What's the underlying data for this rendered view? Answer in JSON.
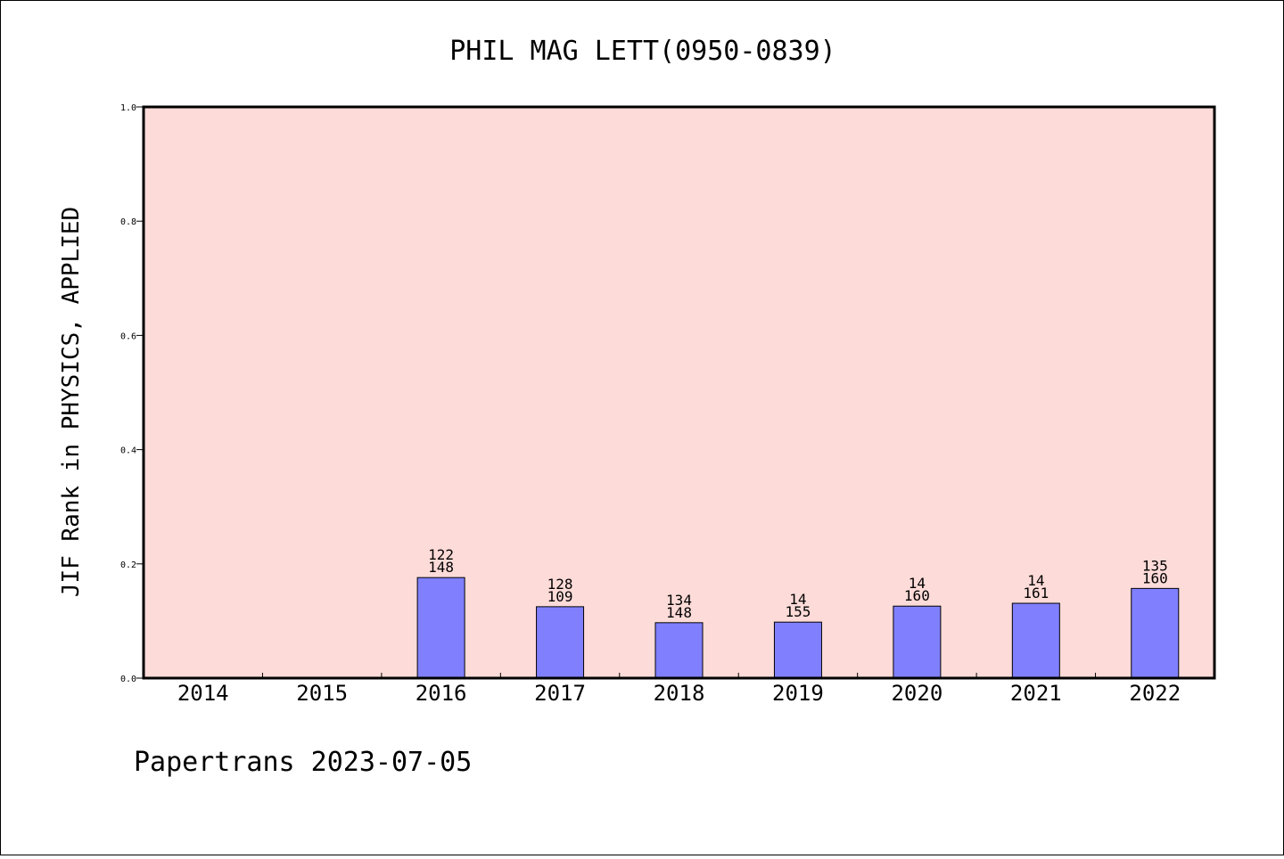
{
  "chart_data": {
    "type": "bar",
    "title": "PHIL MAG LETT(0950-0839)",
    "xlabel": "",
    "ylabel": "JIF Rank in PHYSICS, APPLIED",
    "ylim": [
      0,
      1.0
    ],
    "yticks": [
      "0.0",
      "0.2",
      "0.4",
      "0.6",
      "0.8",
      "1.0"
    ],
    "categories": [
      "2014",
      "2015",
      "2016",
      "2017",
      "2018",
      "2019",
      "2020",
      "2021",
      "2022"
    ],
    "values": [
      null,
      null,
      0.176,
      0.125,
      0.097,
      0.098,
      0.126,
      0.131,
      0.157
    ],
    "bar_labels": [
      null,
      null,
      {
        "top": "122",
        "bottom": "148"
      },
      {
        "top": "128",
        "bottom": "109"
      },
      {
        "top": "134",
        "bottom": "148"
      },
      {
        "top": "14",
        "bottom": "155"
      },
      {
        "top": "14",
        "bottom": "160"
      },
      {
        "top": "14",
        "bottom": "161"
      },
      {
        "top": "135",
        "bottom": "160"
      }
    ],
    "grid": false,
    "colors": {
      "bar": "#8080ff",
      "plot_background": "#fddbd8",
      "axis": "#000000"
    }
  },
  "footer": {
    "text": "Papertrans 2023-07-05"
  }
}
